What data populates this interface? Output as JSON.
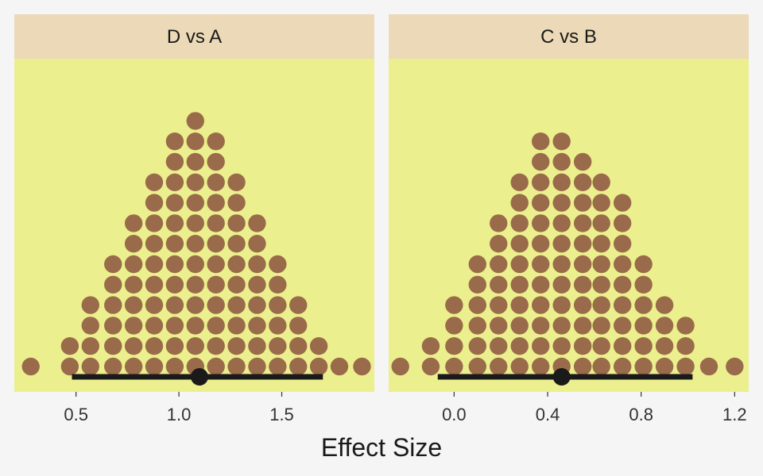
{
  "chart_data": {
    "type": "dotplot",
    "xlabel": "Effect Size",
    "colors": {
      "background": "#f5f5f5",
      "panel": "#ecef8d",
      "strip": "#ecd9b7",
      "dot": "#9a6b4b",
      "interval": "#1a1a1a"
    },
    "panels": [
      {
        "title": "D vs A",
        "xlim": [
          0.2,
          1.95
        ],
        "ticks": [
          0.5,
          1.0,
          1.5
        ],
        "tick_labels": [
          "0.5",
          "1.0",
          "1.5"
        ],
        "dot_columns": [
          {
            "x": 0.28,
            "count": 1
          },
          {
            "x": 0.47,
            "count": 2
          },
          {
            "x": 0.57,
            "count": 4
          },
          {
            "x": 0.68,
            "count": 6
          },
          {
            "x": 0.78,
            "count": 8
          },
          {
            "x": 0.88,
            "count": 10
          },
          {
            "x": 0.98,
            "count": 12
          },
          {
            "x": 1.08,
            "count": 13
          },
          {
            "x": 1.18,
            "count": 12
          },
          {
            "x": 1.28,
            "count": 10
          },
          {
            "x": 1.38,
            "count": 8
          },
          {
            "x": 1.48,
            "count": 6
          },
          {
            "x": 1.58,
            "count": 4
          },
          {
            "x": 1.68,
            "count": 2
          },
          {
            "x": 1.78,
            "count": 1
          },
          {
            "x": 1.89,
            "count": 1
          }
        ],
        "interval": {
          "low": 0.48,
          "high": 1.7,
          "point": 1.1
        }
      },
      {
        "title": "C vs B",
        "xlim": [
          -0.28,
          1.26
        ],
        "ticks": [
          0.0,
          0.4,
          0.8,
          1.2
        ],
        "tick_labels": [
          "0.0",
          "0.4",
          "0.8",
          "1.2"
        ],
        "dot_columns": [
          {
            "x": -0.23,
            "count": 1
          },
          {
            "x": -0.1,
            "count": 2
          },
          {
            "x": 0.0,
            "count": 4
          },
          {
            "x": 0.1,
            "count": 6
          },
          {
            "x": 0.19,
            "count": 8
          },
          {
            "x": 0.28,
            "count": 10
          },
          {
            "x": 0.37,
            "count": 12
          },
          {
            "x": 0.46,
            "count": 12
          },
          {
            "x": 0.55,
            "count": 11
          },
          {
            "x": 0.63,
            "count": 10
          },
          {
            "x": 0.72,
            "count": 9
          },
          {
            "x": 0.81,
            "count": 6
          },
          {
            "x": 0.9,
            "count": 4
          },
          {
            "x": 0.99,
            "count": 3
          },
          {
            "x": 1.09,
            "count": 1
          },
          {
            "x": 1.2,
            "count": 1
          }
        ],
        "interval": {
          "low": -0.07,
          "high": 1.02,
          "point": 0.46
        }
      }
    ]
  }
}
